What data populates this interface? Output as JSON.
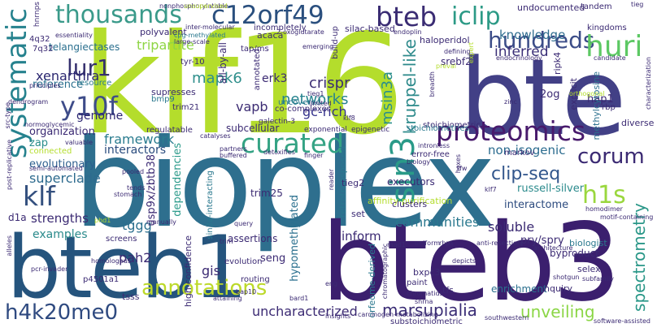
{
  "words": [
    {
      "text": "klf16"
    },
    {
      "text": "bioplex"
    },
    {
      "text": "bte"
    },
    {
      "text": "bteb3"
    },
    {
      "text": "bteb1"
    },
    {
      "text": "thousands"
    },
    {
      "text": "c12orf49"
    },
    {
      "text": "bteb"
    },
    {
      "text": "iclip"
    },
    {
      "text": "hundreds"
    },
    {
      "text": "huri"
    },
    {
      "text": "systematic"
    },
    {
      "text": "lur1"
    },
    {
      "text": "y10f"
    },
    {
      "text": "proteomics"
    },
    {
      "text": "curated"
    },
    {
      "text": "sin3"
    },
    {
      "text": "corum"
    },
    {
      "text": "clip-seq"
    },
    {
      "text": "h1s"
    },
    {
      "text": "klf"
    },
    {
      "text": "superclade"
    },
    {
      "text": "annotations"
    },
    {
      "text": "h4k20me0"
    },
    {
      "text": "uncharacterized"
    },
    {
      "text": "marsupialia"
    },
    {
      "text": "unveiling"
    },
    {
      "text": "spectrometry"
    },
    {
      "text": "xenarthra"
    },
    {
      "text": "reference"
    },
    {
      "text": "mapk6"
    },
    {
      "text": "genome"
    },
    {
      "text": "tripartite"
    },
    {
      "text": "knowledge"
    },
    {
      "text": "inferred"
    },
    {
      "text": "crispr"
    },
    {
      "text": "msin3a"
    },
    {
      "text": "kruppel-like"
    },
    {
      "text": "networks"
    },
    {
      "text": "vapb"
    },
    {
      "text": "gc-rich"
    },
    {
      "text": "framework"
    },
    {
      "text": "interactors"
    },
    {
      "text": "organization"
    },
    {
      "text": "zap"
    },
    {
      "text": "evolutionary"
    },
    {
      "text": "non-isogenic"
    },
    {
      "text": "russell-silver"
    },
    {
      "text": "interactome"
    },
    {
      "text": "strengths"
    },
    {
      "text": "examples"
    },
    {
      "text": "tggg"
    },
    {
      "text": "d1a"
    },
    {
      "text": "communities"
    },
    {
      "text": "inform"
    },
    {
      "text": "soluble"
    },
    {
      "text": "pry/spry"
    },
    {
      "text": "trim25"
    },
    {
      "text": "executors"
    },
    {
      "text": "seng"
    },
    {
      "text": "gis"
    },
    {
      "text": "pah2"
    },
    {
      "text": "usp9x/zbtb38"
    },
    {
      "text": "dependencies"
    },
    {
      "text": "polyvalent"
    },
    {
      "text": "acaca"
    },
    {
      "text": "erk3"
    },
    {
      "text": "all-by-all"
    },
    {
      "text": "tap/ms"
    },
    {
      "text": "silac-based"
    },
    {
      "text": "haloperidol"
    },
    {
      "text": "kingdoms"
    },
    {
      "text": "telangiectases"
    },
    {
      "text": "assertions"
    },
    {
      "text": "hypomethylated"
    },
    {
      "text": "orfeome-derived"
    },
    {
      "text": "bxpc3"
    },
    {
      "text": "paint"
    },
    {
      "text": "tfs"
    },
    {
      "text": "enrichment"
    },
    {
      "text": "inquiry"
    },
    {
      "text": "selex"
    },
    {
      "text": "byproduct"
    },
    {
      "text": "biologist"
    },
    {
      "text": "high-confidence"
    },
    {
      "text": "routing"
    },
    {
      "text": "evolution"
    },
    {
      "text": "p4501a1"
    },
    {
      "text": "tsss"
    },
    {
      "text": "stoichiometric"
    },
    {
      "text": "substoichiometric"
    },
    {
      "text": "retrotransposed"
    },
    {
      "text": "affinity-purification"
    },
    {
      "text": "tieg2"
    },
    {
      "text": "set"
    },
    {
      "text": "clusters"
    },
    {
      "text": "ripk4"
    },
    {
      "text": "2og"
    },
    {
      "text": "hap1"
    },
    {
      "text": "explicit"
    },
    {
      "text": "methylcytosine"
    },
    {
      "text": "markov"
    },
    {
      "text": "diverse"
    },
    {
      "text": "rbp"
    },
    {
      "text": "undocumented"
    },
    {
      "text": "tandem"
    },
    {
      "text": "srebf2"
    },
    {
      "text": "supresses"
    },
    {
      "text": "trim21"
    },
    {
      "text": "bmp9"
    },
    {
      "text": "subcellular"
    },
    {
      "text": "regulatable"
    },
    {
      "text": "co-complexes"
    },
    {
      "text": "uncovered"
    },
    {
      "text": "stoichiometries"
    },
    {
      "text": "sin3a-interacting"
    },
    {
      "text": "tyr-10"
    },
    {
      "text": "resource"
    },
    {
      "text": "connected"
    },
    {
      "text": "screens"
    },
    {
      "text": "error-free"
    },
    {
      "text": "epigenetic"
    },
    {
      "text": "exponential"
    },
    {
      "text": "galectin-3"
    },
    {
      "text": "annotated"
    },
    {
      "text": "build-up"
    },
    {
      "text": "incompletely"
    },
    {
      "text": "inter-molecular"
    },
    {
      "text": "nonphosphorylatable"
    },
    {
      "text": "4q32"
    },
    {
      "text": "7q32"
    },
    {
      "text": "hnrnps"
    },
    {
      "text": "essentiality"
    },
    {
      "text": "principles"
    },
    {
      "text": "src-type"
    },
    {
      "text": "dendrogram"
    },
    {
      "text": "cpg-methylated"
    },
    {
      "text": "large-scale"
    },
    {
      "text": "emerging"
    },
    {
      "text": "defining"
    },
    {
      "text": "breadth"
    },
    {
      "text": "expert"
    },
    {
      "text": "endocrinology"
    },
    {
      "text": "candidate"
    },
    {
      "text": "characterization"
    },
    {
      "text": "orthogonal"
    },
    {
      "text": "zinc"
    },
    {
      "text": "endoplin"
    },
    {
      "text": "tieg"
    },
    {
      "text": "klf8"
    },
    {
      "text": "tieg1"
    },
    {
      "text": "limited"
    },
    {
      "text": "biology"
    },
    {
      "text": "intronless"
    },
    {
      "text": "detoxifies"
    },
    {
      "text": "partners"
    },
    {
      "text": "buffered"
    },
    {
      "text": "catalyses"
    },
    {
      "text": "valuable"
    },
    {
      "text": "normoglycemic"
    },
    {
      "text": "post-replicative"
    },
    {
      "text": "semi-automated"
    },
    {
      "text": "pcr-invader"
    },
    {
      "text": "homologous"
    },
    {
      "text": "manually"
    },
    {
      "text": "pooled"
    },
    {
      "text": "phd1"
    },
    {
      "text": "trim"
    },
    {
      "text": "query"
    },
    {
      "text": "bap10"
    },
    {
      "text": "attaining"
    },
    {
      "text": "bard1"
    },
    {
      "text": "eng"
    },
    {
      "text": "chromatids"
    },
    {
      "text": "shrna"
    },
    {
      "text": "mad1"
    },
    {
      "text": "chromatographic"
    },
    {
      "text": "depicts"
    },
    {
      "text": "uniform"
    },
    {
      "text": "rbps"
    },
    {
      "text": "anti-resection"
    },
    {
      "text": "architecture"
    },
    {
      "text": "shotgun"
    },
    {
      "text": "subfamily"
    },
    {
      "text": "homodimer"
    },
    {
      "text": "motif-containing"
    },
    {
      "text": "insights"
    },
    {
      "text": "carcinogen-metabolizing"
    },
    {
      "text": "southwestern"
    },
    {
      "text": "software-assisted"
    },
    {
      "text": "finger"
    },
    {
      "text": "hoxes"
    },
    {
      "text": "tfw"
    },
    {
      "text": "klf7"
    },
    {
      "text": "2-oxoglutarate"
    },
    {
      "text": "tends"
    },
    {
      "text": "stomach"
    },
    {
      "text": "reader"
    },
    {
      "text": "alleles"
    },
    {
      "text": "unsupervised"
    },
    {
      "text": "preval"
    }
  ]
}
